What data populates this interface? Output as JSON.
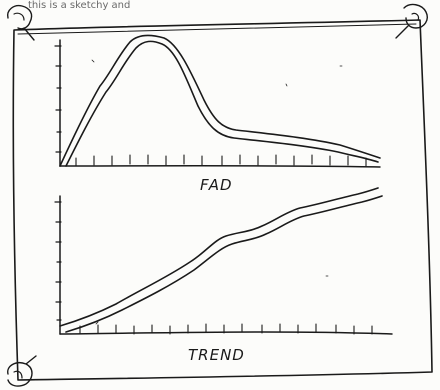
{
  "header": {
    "cropped_text": "this is a sketchy and"
  },
  "charts": {
    "top_label": "FAD",
    "bottom_label": "TREND"
  }
}
